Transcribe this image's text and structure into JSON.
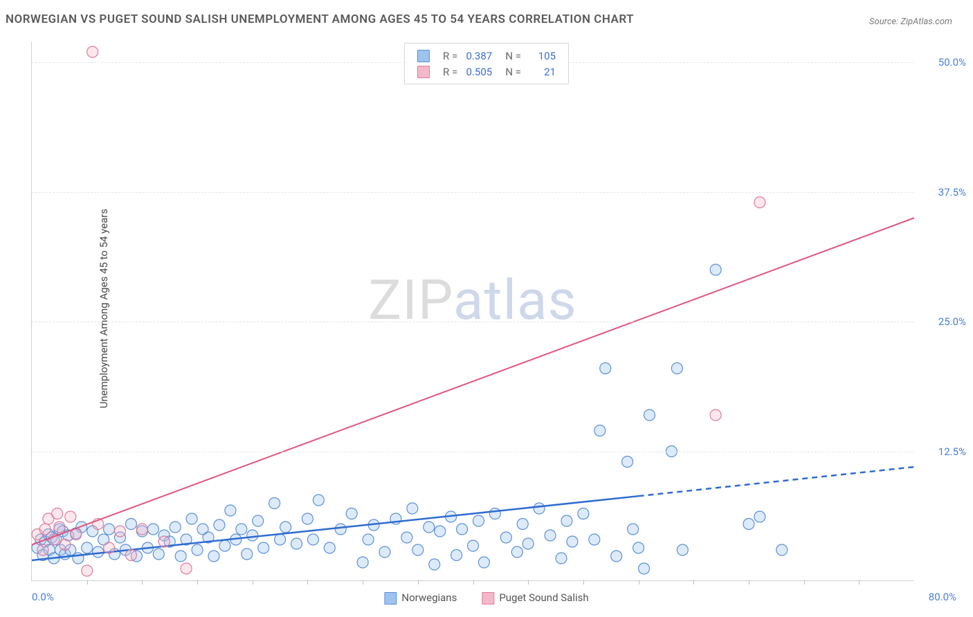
{
  "title": "NORWEGIAN VS PUGET SOUND SALISH UNEMPLOYMENT AMONG AGES 45 TO 54 YEARS CORRELATION CHART",
  "source": "Source: ZipAtlas.com",
  "ylabel": "Unemployment Among Ages 45 to 54 years",
  "watermark_a": "ZIP",
  "watermark_b": "atlas",
  "chart": {
    "type": "scatter",
    "xlim": [
      0,
      80
    ],
    "ylim": [
      0,
      52
    ],
    "x_origin_label": "0.0%",
    "x_max_label": "80.0%",
    "y_ticks": [
      {
        "v": 12.5,
        "label": "12.5%"
      },
      {
        "v": 25.0,
        "label": "25.0%"
      },
      {
        "v": 37.5,
        "label": "37.5%"
      },
      {
        "v": 50.0,
        "label": "50.0%"
      }
    ],
    "x_minor_tick_step": 5,
    "marker_radius": 8,
    "marker_fill_opacity": 0.35,
    "marker_stroke_width": 1.2,
    "gridline_color": "#e5e5e5",
    "axis_color": "#d0d0d0",
    "background_color": "#ffffff",
    "tick_label_color": "#4a7fd6",
    "series": [
      {
        "name": "Norwegians",
        "color_fill": "#9fc3ef",
        "color_stroke": "#5b90d6",
        "trend_color": "#2e6bd0",
        "trend_width": 2.5,
        "trend_solid_to_x": 55,
        "trend_y_at_x0": 2.0,
        "trend_y_at_xmax": 11.0,
        "R": "0.387",
        "N": "105",
        "points": [
          [
            0.5,
            3.2
          ],
          [
            0.8,
            4.0
          ],
          [
            1.0,
            2.5
          ],
          [
            1.2,
            3.8
          ],
          [
            1.5,
            4.5
          ],
          [
            1.6,
            3.0
          ],
          [
            1.8,
            4.2
          ],
          [
            2.0,
            2.2
          ],
          [
            2.2,
            4.0
          ],
          [
            2.5,
            5.0
          ],
          [
            2.6,
            3.0
          ],
          [
            2.8,
            4.8
          ],
          [
            3.0,
            2.6
          ],
          [
            3.3,
            4.4
          ],
          [
            3.5,
            3.0
          ],
          [
            4.0,
            4.6
          ],
          [
            4.2,
            2.2
          ],
          [
            4.5,
            5.2
          ],
          [
            5.0,
            3.2
          ],
          [
            5.5,
            4.8
          ],
          [
            6.0,
            2.8
          ],
          [
            6.5,
            4.0
          ],
          [
            7.0,
            5.0
          ],
          [
            7.5,
            2.6
          ],
          [
            8.0,
            4.2
          ],
          [
            8.5,
            3.0
          ],
          [
            9.0,
            5.5
          ],
          [
            9.5,
            2.4
          ],
          [
            10.0,
            4.8
          ],
          [
            10.5,
            3.2
          ],
          [
            11.0,
            5.0
          ],
          [
            11.5,
            2.6
          ],
          [
            12.0,
            4.4
          ],
          [
            12.5,
            3.8
          ],
          [
            13.0,
            5.2
          ],
          [
            13.5,
            2.4
          ],
          [
            14.0,
            4.0
          ],
          [
            14.5,
            6.0
          ],
          [
            15.0,
            3.0
          ],
          [
            15.5,
            5.0
          ],
          [
            16.0,
            4.2
          ],
          [
            16.5,
            2.4
          ],
          [
            17.0,
            5.4
          ],
          [
            17.5,
            3.4
          ],
          [
            18.0,
            6.8
          ],
          [
            18.5,
            4.0
          ],
          [
            19.0,
            5.0
          ],
          [
            19.5,
            2.6
          ],
          [
            20.0,
            4.4
          ],
          [
            20.5,
            5.8
          ],
          [
            21.0,
            3.2
          ],
          [
            22.0,
            7.5
          ],
          [
            22.5,
            4.0
          ],
          [
            23.0,
            5.2
          ],
          [
            24.0,
            3.6
          ],
          [
            25.0,
            6.0
          ],
          [
            25.5,
            4.0
          ],
          [
            26.0,
            7.8
          ],
          [
            27.0,
            3.2
          ],
          [
            28.0,
            5.0
          ],
          [
            29.0,
            6.5
          ],
          [
            30.0,
            1.8
          ],
          [
            30.5,
            4.0
          ],
          [
            31.0,
            5.4
          ],
          [
            32.0,
            2.8
          ],
          [
            33.0,
            6.0
          ],
          [
            34.0,
            4.2
          ],
          [
            34.5,
            7.0
          ],
          [
            35.0,
            3.0
          ],
          [
            36.0,
            5.2
          ],
          [
            36.5,
            1.6
          ],
          [
            37.0,
            4.8
          ],
          [
            38.0,
            6.2
          ],
          [
            38.5,
            2.5
          ],
          [
            39.0,
            5.0
          ],
          [
            40.0,
            3.4
          ],
          [
            40.5,
            5.8
          ],
          [
            41.0,
            1.8
          ],
          [
            42.0,
            6.5
          ],
          [
            43.0,
            4.2
          ],
          [
            44.0,
            2.8
          ],
          [
            44.5,
            5.5
          ],
          [
            45.0,
            3.6
          ],
          [
            46.0,
            7.0
          ],
          [
            47.0,
            4.4
          ],
          [
            48.0,
            2.2
          ],
          [
            48.5,
            5.8
          ],
          [
            49.0,
            3.8
          ],
          [
            50.0,
            6.5
          ],
          [
            51.0,
            4.0
          ],
          [
            51.5,
            14.5
          ],
          [
            52.0,
            20.5
          ],
          [
            53.0,
            2.4
          ],
          [
            54.0,
            11.5
          ],
          [
            54.5,
            5.0
          ],
          [
            55.0,
            3.2
          ],
          [
            55.5,
            1.2
          ],
          [
            56.0,
            16.0
          ],
          [
            58.0,
            12.5
          ],
          [
            58.5,
            20.5
          ],
          [
            59.0,
            3.0
          ],
          [
            62.0,
            30.0
          ],
          [
            65.0,
            5.5
          ],
          [
            66.0,
            6.2
          ],
          [
            68.0,
            3.0
          ]
        ]
      },
      {
        "name": "Puget Sound Salish",
        "color_fill": "#f4b9c9",
        "color_stroke": "#e07a9a",
        "trend_color": "#e2547e",
        "trend_width": 2,
        "trend_solid_to_x": 80,
        "trend_y_at_x0": 3.5,
        "trend_y_at_xmax": 35.0,
        "R": "0.505",
        "N": "21",
        "points": [
          [
            0.5,
            4.5
          ],
          [
            1.0,
            3.0
          ],
          [
            1.2,
            5.0
          ],
          [
            1.5,
            6.0
          ],
          [
            2.0,
            4.0
          ],
          [
            2.3,
            6.5
          ],
          [
            2.5,
            5.2
          ],
          [
            3.0,
            3.5
          ],
          [
            3.5,
            6.2
          ],
          [
            4.0,
            4.5
          ],
          [
            5.0,
            1.0
          ],
          [
            5.5,
            51.0
          ],
          [
            6.0,
            5.5
          ],
          [
            7.0,
            3.2
          ],
          [
            8.0,
            4.8
          ],
          [
            9.0,
            2.5
          ],
          [
            10.0,
            5.0
          ],
          [
            12.0,
            3.8
          ],
          [
            14.0,
            1.2
          ],
          [
            62.0,
            16.0
          ],
          [
            66.0,
            36.5
          ]
        ]
      }
    ]
  },
  "bottom_legend": [
    {
      "label": "Norwegians",
      "fill": "#9fc3ef",
      "stroke": "#5b90d6"
    },
    {
      "label": "Puget Sound Salish",
      "fill": "#f4b9c9",
      "stroke": "#e07a9a"
    }
  ]
}
